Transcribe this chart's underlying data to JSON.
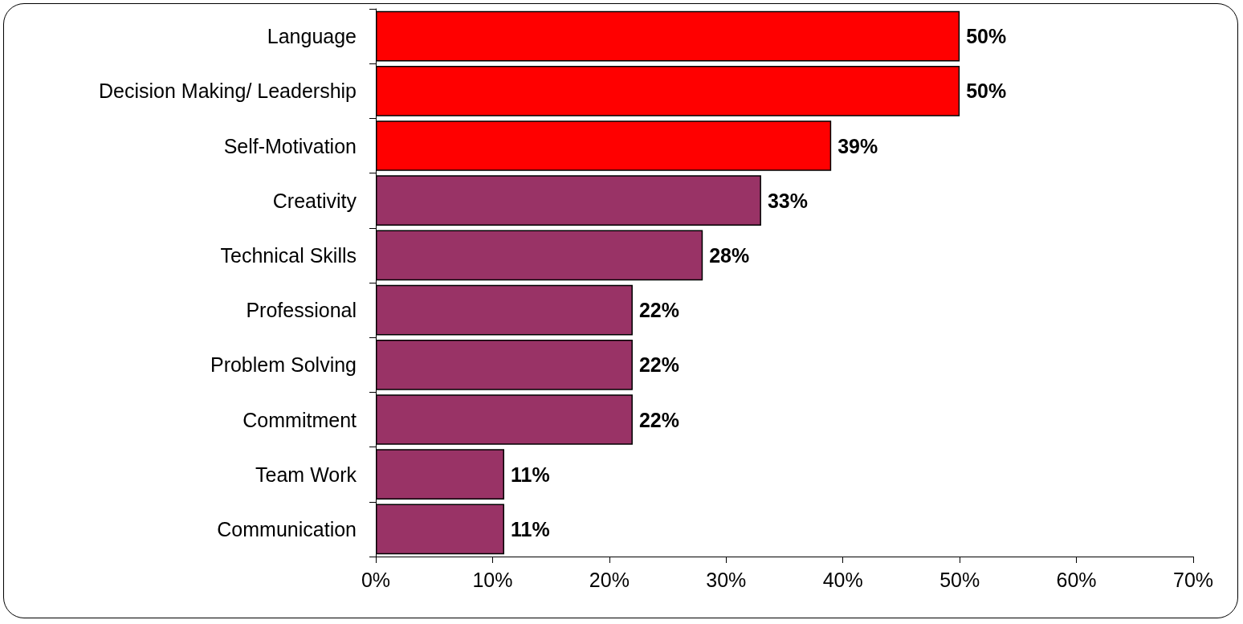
{
  "chart_data": {
    "type": "bar",
    "orientation": "horizontal",
    "categories": [
      "Language",
      "Decision Making/ Leadership",
      "Self-Motivation",
      "Creativity",
      "Technical Skills",
      "Professional",
      "Problem Solving",
      "Commitment",
      "Team Work",
      "Communication"
    ],
    "values": [
      50,
      50,
      39,
      33,
      28,
      22,
      22,
      22,
      11,
      11
    ],
    "colors": [
      "#ff0000",
      "#ff0000",
      "#ff0000",
      "#993366",
      "#993366",
      "#993366",
      "#993366",
      "#993366",
      "#993366",
      "#993366"
    ],
    "value_labels": [
      "50%",
      "50%",
      "39%",
      "33%",
      "28%",
      "22%",
      "22%",
      "22%",
      "11%",
      "11%"
    ],
    "xlim": [
      0,
      70
    ],
    "xticks": [
      {
        "value": 0,
        "label": "0%"
      },
      {
        "value": 10,
        "label": "10%"
      },
      {
        "value": 20,
        "label": "20%"
      },
      {
        "value": 30,
        "label": "30%"
      },
      {
        "value": 40,
        "label": "40%"
      },
      {
        "value": 50,
        "label": "50%"
      },
      {
        "value": 60,
        "label": "60%"
      },
      {
        "value": 70,
        "label": "70%"
      }
    ],
    "grid": false
  }
}
